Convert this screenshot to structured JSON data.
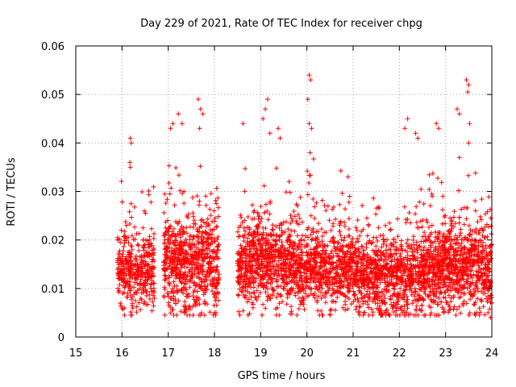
{
  "chart_data": {
    "type": "scatter",
    "title": "Day 229 of 2021, Rate Of TEC Index for receiver chpg",
    "xlabel": "GPS time / hours",
    "ylabel": "ROTI / TECUs",
    "xlim": [
      15,
      24
    ],
    "ylim": [
      0,
      0.06
    ],
    "xticks": [
      "15",
      "16",
      "17",
      "18",
      "19",
      "20",
      "21",
      "22",
      "23",
      "24"
    ],
    "yticks": [
      "0",
      "0.01",
      "0.02",
      "0.03",
      "0.04",
      "0.05",
      "0.06"
    ],
    "grid": true,
    "marker": "+",
    "series": [
      {
        "name": "ROTI",
        "color": "#ff0000",
        "clusters": [
          {
            "x_start": 15.9,
            "x_end": 16.7,
            "y_mean": 0.0135,
            "y_spread": 0.0035,
            "count": 380
          },
          {
            "x_start": 16.9,
            "x_end": 18.1,
            "y_mean": 0.015,
            "y_spread": 0.005,
            "count": 700
          },
          {
            "x_start": 18.5,
            "x_end": 19.6,
            "y_mean": 0.015,
            "y_spread": 0.0045,
            "count": 620
          },
          {
            "x_start": 19.6,
            "x_end": 21.0,
            "y_mean": 0.014,
            "y_spread": 0.004,
            "count": 760
          },
          {
            "x_start": 21.0,
            "x_end": 22.5,
            "y_mean": 0.0125,
            "y_spread": 0.004,
            "count": 820
          },
          {
            "x_start": 22.5,
            "x_end": 24.0,
            "y_mean": 0.014,
            "y_spread": 0.0045,
            "count": 900
          }
        ],
        "points": [
          [
            16.18,
            0.041
          ],
          [
            16.2,
            0.04
          ],
          [
            16.17,
            0.036
          ],
          [
            16.18,
            0.035
          ],
          [
            17.05,
            0.043
          ],
          [
            17.1,
            0.044
          ],
          [
            17.22,
            0.046
          ],
          [
            17.3,
            0.044
          ],
          [
            17.65,
            0.049
          ],
          [
            17.7,
            0.047
          ],
          [
            17.75,
            0.046
          ],
          [
            17.68,
            0.043
          ],
          [
            18.62,
            0.044
          ],
          [
            19.15,
            0.049
          ],
          [
            19.1,
            0.047
          ],
          [
            19.05,
            0.045
          ],
          [
            19.2,
            0.042
          ],
          [
            19.42,
            0.041
          ],
          [
            19.38,
            0.043
          ],
          [
            20.05,
            0.054
          ],
          [
            20.08,
            0.053
          ],
          [
            20.02,
            0.049
          ],
          [
            20.05,
            0.044
          ],
          [
            20.1,
            0.043
          ],
          [
            20.07,
            0.038
          ],
          [
            22.18,
            0.045
          ],
          [
            22.12,
            0.043
          ],
          [
            22.35,
            0.042
          ],
          [
            22.4,
            0.041
          ],
          [
            22.8,
            0.044
          ],
          [
            22.85,
            0.043
          ],
          [
            23.25,
            0.047
          ],
          [
            23.3,
            0.046
          ],
          [
            23.45,
            0.053
          ],
          [
            23.5,
            0.052
          ],
          [
            23.48,
            0.0505
          ],
          [
            23.52,
            0.044
          ],
          [
            23.5,
            0.04
          ],
          [
            23.3,
            0.037
          ],
          [
            23.97,
            0.004
          ],
          [
            18.0,
            0.005
          ],
          [
            17.35,
            0.005
          ],
          [
            21.6,
            0.0045
          ],
          [
            16.7,
            0.008
          ],
          [
            16.0,
            0.006
          ],
          [
            24.0,
            0.007
          ]
        ]
      }
    ]
  }
}
